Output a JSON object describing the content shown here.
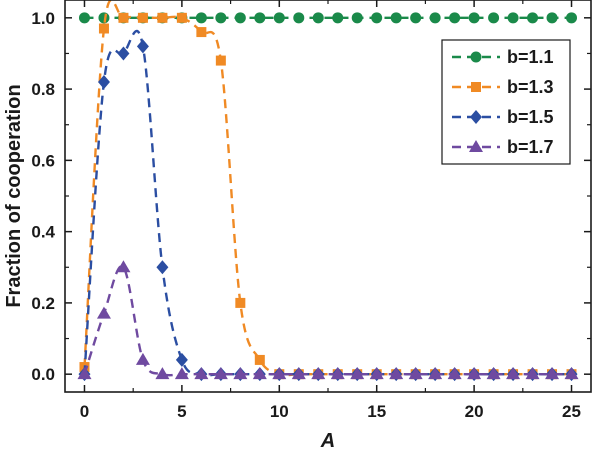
{
  "chart_data": {
    "type": "line",
    "title": "",
    "xlabel": "A",
    "ylabel": "Fraction of cooperation",
    "xlim": [
      -1,
      26
    ],
    "ylim": [
      -0.05,
      1.05
    ],
    "x_ticks": [
      0,
      5,
      10,
      15,
      20,
      25
    ],
    "y_ticks": [
      0.0,
      0.2,
      0.4,
      0.6,
      0.8,
      1.0
    ],
    "x_tick_labels": [
      "0",
      "5",
      "10",
      "15",
      "20",
      "25"
    ],
    "y_tick_labels": [
      "0.0",
      "0.2",
      "0.4",
      "0.6",
      "0.8",
      "1.0"
    ],
    "grid": false,
    "legend_position": "top-right",
    "x": [
      0,
      1,
      2,
      3,
      4,
      5,
      6,
      7,
      8,
      9,
      10,
      11,
      12,
      13,
      14,
      15,
      16,
      17,
      18,
      19,
      20,
      21,
      22,
      23,
      24,
      25
    ],
    "series": [
      {
        "name": "b=1.1",
        "color": "#1a8a4a",
        "marker": "circle",
        "values": [
          1.0,
          1.0,
          1.0,
          1.0,
          1.0,
          1.0,
          1.0,
          1.0,
          1.0,
          1.0,
          1.0,
          1.0,
          1.0,
          1.0,
          1.0,
          1.0,
          1.0,
          1.0,
          1.0,
          1.0,
          1.0,
          1.0,
          1.0,
          1.0,
          1.0,
          1.0
        ]
      },
      {
        "name": "b=1.3",
        "color": "#f08a24",
        "marker": "square",
        "values": [
          0.02,
          0.97,
          1.0,
          1.0,
          1.0,
          1.0,
          0.96,
          0.88,
          0.2,
          0.04,
          0.0,
          0.0,
          0.0,
          0.0,
          0.0,
          0.0,
          0.0,
          0.0,
          0.0,
          0.0,
          0.0,
          0.0,
          0.0,
          0.0,
          0.0,
          0.0
        ]
      },
      {
        "name": "b=1.5",
        "color": "#2b4ea2",
        "marker": "diamond",
        "values": [
          0.0,
          0.82,
          0.9,
          0.92,
          0.3,
          0.04,
          0.0,
          0.0,
          0.0,
          0.0,
          0.0,
          0.0,
          0.0,
          0.0,
          0.0,
          0.0,
          0.0,
          0.0,
          0.0,
          0.0,
          0.0,
          0.0,
          0.0,
          0.0,
          0.0,
          0.0
        ]
      },
      {
        "name": "b=1.7",
        "color": "#6f4aa0",
        "marker": "triangle",
        "values": [
          0.0,
          0.17,
          0.3,
          0.04,
          0.0,
          0.0,
          0.0,
          0.0,
          0.0,
          0.0,
          0.0,
          0.0,
          0.0,
          0.0,
          0.0,
          0.0,
          0.0,
          0.0,
          0.0,
          0.0,
          0.0,
          0.0,
          0.0,
          0.0,
          0.0,
          0.0
        ]
      }
    ]
  }
}
